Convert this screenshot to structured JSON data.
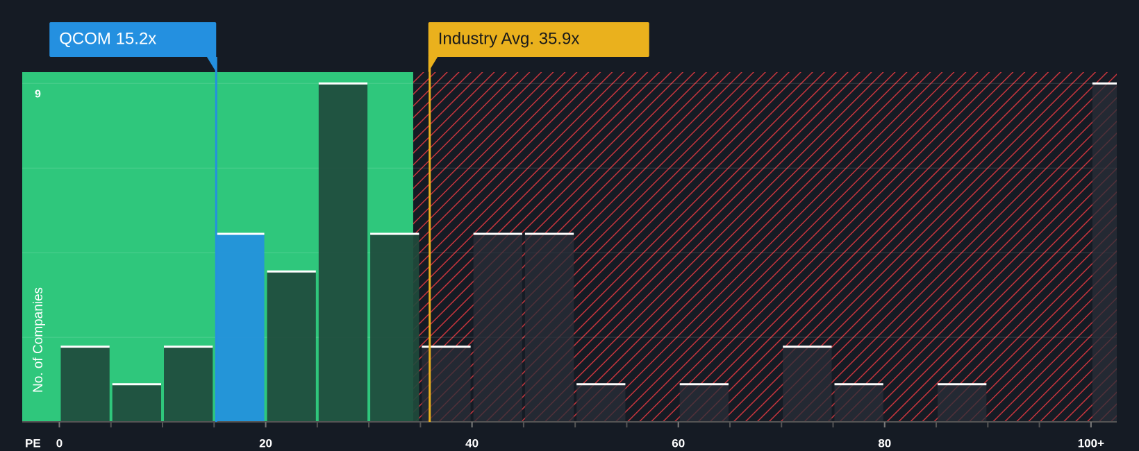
{
  "chart_data": {
    "type": "histogram",
    "xlabel": "PE",
    "ylabel": "No. of Companies",
    "bins": [
      0,
      5,
      10,
      15,
      20,
      25,
      30,
      35,
      40,
      45,
      50,
      55,
      60,
      65,
      70,
      75,
      80,
      85,
      90,
      95,
      100,
      105
    ],
    "values": [
      2,
      1,
      2,
      5,
      4,
      9,
      5,
      2,
      5,
      5,
      1,
      0,
      1,
      0,
      2,
      1,
      0,
      1,
      0,
      0,
      9
    ],
    "highlight_bin": 3,
    "xlim": [
      -3.6,
      102.5
    ],
    "ylim": [
      0,
      9.3
    ],
    "xticks": [
      0,
      20,
      40,
      60,
      80,
      {
        "value": 100,
        "label": "100+"
      }
    ],
    "yticks": [
      9
    ],
    "fair_below": 34.3,
    "annotations": [
      {
        "label": "QCOM 15.2x",
        "value": 15.2,
        "color": "#2490e0"
      },
      {
        "label": "Industry Avg. 35.9x",
        "value": 35.9,
        "color": "#eab11d"
      }
    ],
    "colors": {
      "fair_region": "#2fc77c",
      "bar": "#1f4a3c",
      "bar_over": "#2a2f38",
      "highlight": "#2490e0",
      "hatch": "#c8353d"
    }
  }
}
